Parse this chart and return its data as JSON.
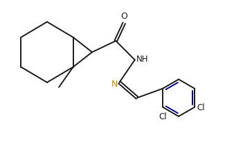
{
  "bg_color": "#ffffff",
  "line_color": "#1a1a1a",
  "double_bond_color": "#00008b",
  "imine_n_color": "#cc8800",
  "line_width": 1.4,
  "label_fontsize": 8.5,
  "fig_width": 3.38,
  "fig_height": 2.26,
  "dpi": 100,
  "xlim": [
    -0.3,
    9.5
  ],
  "ylim": [
    0.2,
    6.8
  ]
}
